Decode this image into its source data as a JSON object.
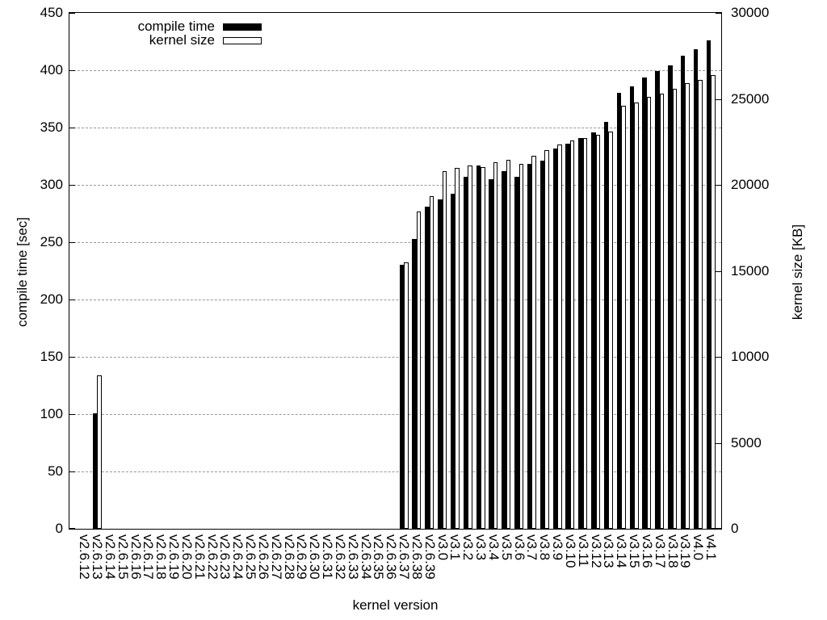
{
  "legend": {
    "items": [
      {
        "label": "compile time",
        "swatch": "filled-black"
      },
      {
        "label": "kernel size",
        "swatch": "open-white"
      }
    ]
  },
  "axes": {
    "x_title": "kernel version",
    "y_left_title": "compile time [sec]",
    "y_right_title": "kernel size [KB]",
    "y_left_ticks": [
      0,
      50,
      100,
      150,
      200,
      250,
      300,
      350,
      400,
      450
    ],
    "y_right_ticks": [
      0,
      5000,
      10000,
      15000,
      20000,
      25000,
      30000
    ]
  },
  "colors": {
    "bar_fill": "#000000",
    "bar_open_fill": "#ffffff",
    "bar_outline": "#000000",
    "grid": "#999999",
    "text": "#000000",
    "background": "#ffffff"
  },
  "chart_data": {
    "type": "bar",
    "title": "",
    "xlabel": "kernel version",
    "ylabel_left": "compile time [sec]",
    "ylabel_right": "kernel size [KB]",
    "ylim_left": [
      0,
      450
    ],
    "ylim_right": [
      0,
      30000
    ],
    "grid": true,
    "grid_style": "dashed-horizontal-at-left-ticks",
    "legend_position": "top-left-inside",
    "categories": [
      "v2.6.12",
      "v2.6.13",
      "v2.6.14",
      "v2.6.15",
      "v2.6.16",
      "v2.6.17",
      "v2.6.18",
      "v2.6.19",
      "v2.6.20",
      "v2.6.21",
      "v2.6.22",
      "v2.6.23",
      "v2.6.24",
      "v2.6.25",
      "v2.6.26",
      "v2.6.27",
      "v2.6.28",
      "v2.6.29",
      "v2.6.30",
      "v2.6.31",
      "v2.6.32",
      "v2.6.33",
      "v2.6.34",
      "v2.6.35",
      "v2.6.36",
      "v2.6.37",
      "v2.6.38",
      "v2.6.39",
      "v3.0",
      "v3.1",
      "v3.2",
      "v3.3",
      "v3.4",
      "v3.5",
      "v3.6",
      "v3.7",
      "v3.8",
      "v3.9",
      "v3.10",
      "v3.11",
      "v3.12",
      "v3.13",
      "v3.14",
      "v3.15",
      "v3.16",
      "v3.17",
      "v3.18",
      "v3.19",
      "v4.0",
      "v4.1"
    ],
    "series": [
      {
        "name": "compile time",
        "axis": "left",
        "unit": "sec",
        "style": "filled-black",
        "values": [
          null,
          101,
          null,
          null,
          null,
          null,
          null,
          null,
          null,
          null,
          null,
          null,
          null,
          null,
          null,
          null,
          null,
          null,
          null,
          null,
          null,
          null,
          null,
          null,
          null,
          230,
          253,
          281,
          287,
          292,
          307,
          317,
          305,
          312,
          307,
          318,
          321,
          332,
          336,
          341,
          346,
          355,
          380,
          386,
          394,
          399,
          404,
          413,
          418,
          426
        ]
      },
      {
        "name": "kernel size",
        "axis": "right",
        "unit": "KB",
        "style": "open-white",
        "values": [
          null,
          8900,
          null,
          null,
          null,
          null,
          null,
          null,
          null,
          null,
          null,
          null,
          null,
          null,
          null,
          null,
          null,
          null,
          null,
          null,
          null,
          null,
          null,
          null,
          null,
          15500,
          18450,
          19350,
          20800,
          21000,
          21150,
          21050,
          21300,
          21450,
          21200,
          21700,
          22000,
          22350,
          22600,
          22700,
          22900,
          23100,
          24600,
          24800,
          25100,
          25300,
          25600,
          25900,
          26100,
          26400
        ]
      }
    ]
  }
}
